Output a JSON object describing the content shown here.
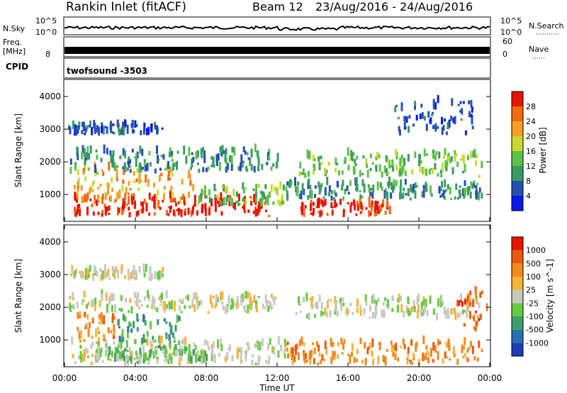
{
  "header": {
    "station": "Rankin Inlet (fitACF)",
    "beam": "Beam 12",
    "dates": "23/Aug/2016 - 24/Aug/2016"
  },
  "top_strip": {
    "nsky_label": "N.Sky",
    "nsky_ticks": [
      "10^5",
      "10^0"
    ],
    "nsearch_label": "N.Search",
    "nsearch_ticks": [
      "10^5",
      "10^0"
    ],
    "freq_label": "Freq.",
    "freq_unit": "[MHz]",
    "freq_ticks": [
      "8"
    ],
    "nave_label": "Nave",
    "nave_ticks": [
      "60",
      "0"
    ],
    "cpid_label": "CPID",
    "cpid_value": "twofsound -3503"
  },
  "colors": {
    "power": [
      "#0a19e6",
      "#2550b0",
      "#3a9a62",
      "#5cc04a",
      "#c9d92e",
      "#f3a025",
      "#f06a10",
      "#e61400"
    ],
    "velocity": [
      "#1e3cb4",
      "#2a6fb0",
      "#3f9e6c",
      "#67c844",
      "#c8c8c0",
      "#f2b43c",
      "#f08a1e",
      "#e85a0f",
      "#e61400"
    ]
  },
  "chart_data": [
    {
      "type": "heatmap",
      "panel": "power",
      "ylabel": "Slant Range [km]",
      "yticks": [
        "1000",
        "2000",
        "3000",
        "4000"
      ],
      "ylim": [
        200,
        4500
      ],
      "xlim": [
        0,
        24
      ],
      "colorbar_label": "Power [dB]",
      "colorbar_ticks": [
        "4",
        "8",
        "12",
        "16",
        "20",
        "24",
        "28"
      ],
      "bands": [
        {
          "t0": 0.5,
          "t1": 11.5,
          "r0": 300,
          "r1": 900,
          "level": 7
        },
        {
          "t0": 13.3,
          "t1": 18.5,
          "r0": 300,
          "r1": 700,
          "level": 7
        },
        {
          "t0": 0.5,
          "t1": 7.5,
          "r0": 700,
          "r1": 1800,
          "level": 5
        },
        {
          "t0": 7.5,
          "t1": 12.5,
          "r0": 600,
          "r1": 1200,
          "level": 3
        },
        {
          "t0": 12.5,
          "t1": 23.5,
          "r0": 800,
          "r1": 1300,
          "level": 2
        },
        {
          "t0": 13,
          "t1": 23.5,
          "r0": 1500,
          "r1": 2200,
          "level": 3
        },
        {
          "t0": 0.2,
          "t1": 12,
          "r0": 1600,
          "r1": 2300,
          "level": 2
        },
        {
          "t0": 0.2,
          "t1": 5.5,
          "r0": 2800,
          "r1": 3100,
          "level": 1
        },
        {
          "t0": 18.5,
          "t1": 23,
          "r0": 2800,
          "r1": 3800,
          "level": 1
        }
      ]
    },
    {
      "type": "heatmap",
      "panel": "velocity",
      "ylabel": "Slant Range [km]",
      "yticks": [
        "1000",
        "2000",
        "3000",
        "4000"
      ],
      "ylim": [
        200,
        4500
      ],
      "xlim": [
        0,
        24
      ],
      "colorbar_label": "Velocity [m s^-1]",
      "colorbar_ticks": [
        "1000",
        "500",
        "100",
        "25",
        "-25",
        "-100",
        "-500",
        "-1000"
      ],
      "bands": [
        {
          "t0": 0.3,
          "t1": 12.5,
          "r0": 200,
          "r1": 900,
          "level": 4
        },
        {
          "t0": 1.5,
          "t1": 8,
          "r0": 250,
          "r1": 700,
          "level": 3
        },
        {
          "t0": 0.3,
          "t1": 3,
          "r0": 900,
          "r1": 1700,
          "level": 6
        },
        {
          "t0": 3,
          "t1": 6.5,
          "r0": 700,
          "r1": 1600,
          "level": 2
        },
        {
          "t0": 12.5,
          "t1": 23.5,
          "r0": 200,
          "r1": 900,
          "level": 6
        },
        {
          "t0": 13,
          "t1": 23.5,
          "r0": 1600,
          "r1": 2200,
          "level": 4
        },
        {
          "t0": 0.2,
          "t1": 12,
          "r0": 1800,
          "r1": 2300,
          "level": 4
        },
        {
          "t0": 0.2,
          "t1": 5.5,
          "r0": 2800,
          "r1": 3100,
          "level": 4
        },
        {
          "t0": 22,
          "t1": 23.8,
          "r0": 1200,
          "r1": 2400,
          "level": 7
        }
      ]
    }
  ],
  "x_axis": {
    "ticks": [
      "00:00",
      "04:00",
      "08:00",
      "12:00",
      "16:00",
      "20:00",
      "00:00"
    ],
    "label": "Time UT"
  }
}
